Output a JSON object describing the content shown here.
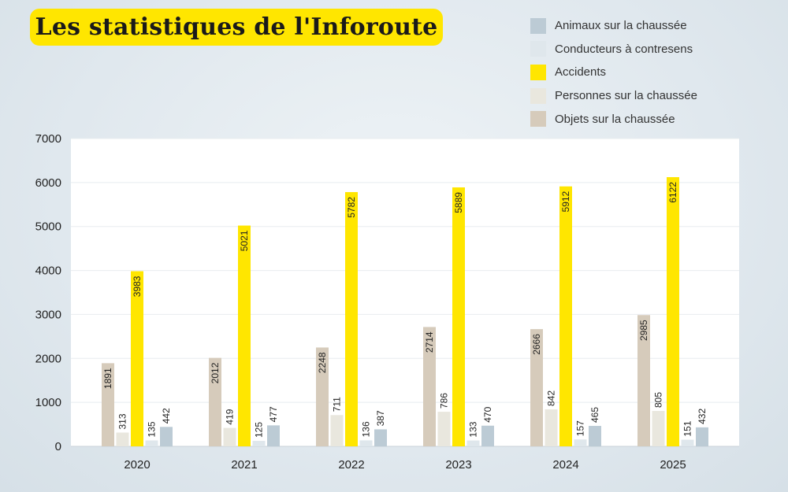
{
  "title": "Les statistiques de l'Inforoute",
  "legend": [
    {
      "label": "Animaux sur la chaussée",
      "color": "#bccbd5"
    },
    {
      "label": "Conducteurs à contresens",
      "color": "#dfe7ec"
    },
    {
      "label": "Accidents",
      "color": "#ffe600"
    },
    {
      "label": "Personnes sur la chaussée",
      "color": "#e9e7de"
    },
    {
      "label": "Objets sur la chaussée",
      "color": "#d6cbbb"
    }
  ],
  "chart_data": {
    "type": "bar",
    "title": "Les statistiques de l'Inforoute",
    "xlabel": "",
    "ylabel": "",
    "ylim": [
      0,
      7000
    ],
    "yticks": [
      0,
      1000,
      2000,
      3000,
      4000,
      5000,
      6000,
      7000
    ],
    "grid": true,
    "legend_position": "top-right",
    "categories": [
      "2020",
      "2021",
      "2022",
      "2023",
      "2024",
      "2025"
    ],
    "series": [
      {
        "name": "Objets sur la chaussée",
        "color": "#d6cbbb",
        "values": [
          1891,
          2012,
          2248,
          2714,
          2666,
          2985
        ]
      },
      {
        "name": "Personnes sur la chaussée",
        "color": "#e9e7de",
        "values": [
          313,
          419,
          711,
          786,
          842,
          805
        ]
      },
      {
        "name": "Accidents",
        "color": "#ffe600",
        "values": [
          3983,
          5021,
          5782,
          5889,
          5912,
          6122
        ]
      },
      {
        "name": "Conducteurs à contresens",
        "color": "#dfe7ec",
        "values": [
          135,
          125,
          136,
          133,
          157,
          151
        ]
      },
      {
        "name": "Animaux sur la chaussée",
        "color": "#bccbd5",
        "values": [
          442,
          477,
          387,
          470,
          465,
          432
        ]
      }
    ]
  }
}
